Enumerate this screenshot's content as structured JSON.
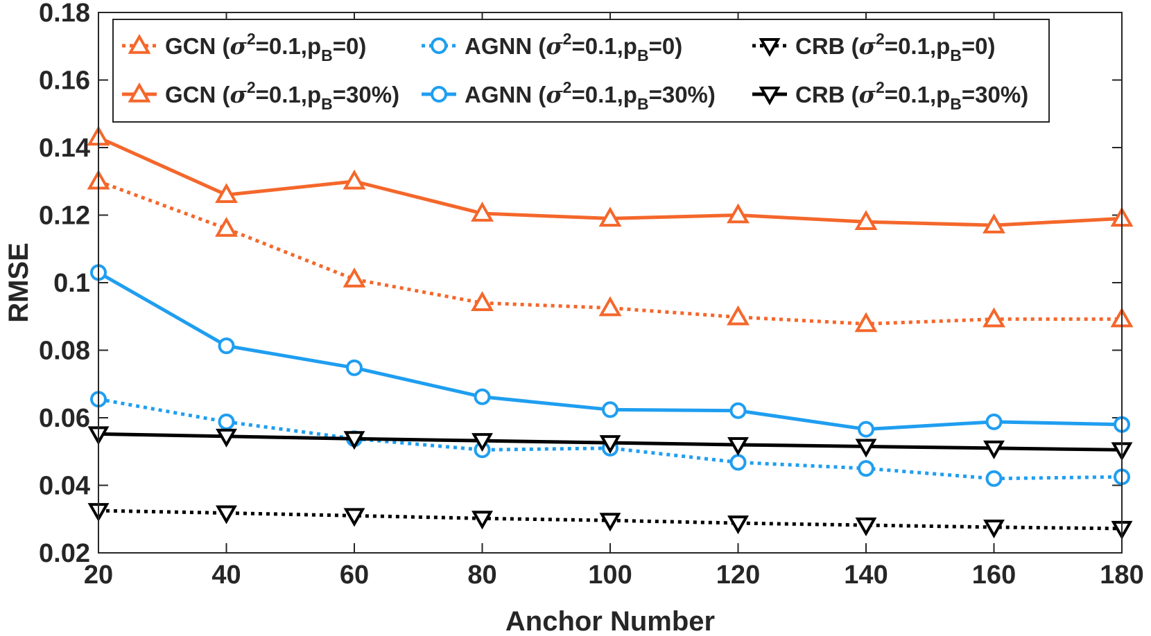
{
  "chart_data": {
    "type": "line",
    "title": "",
    "xlabel": "Anchor Number",
    "ylabel": "RMSE",
    "x": [
      20,
      40,
      60,
      80,
      100,
      120,
      140,
      160,
      180
    ],
    "xlim": [
      20,
      180
    ],
    "ylim": [
      0.02,
      0.18
    ],
    "xticks": [
      20,
      40,
      60,
      80,
      100,
      120,
      140,
      160,
      180
    ],
    "xtick_labels": [
      "20",
      "40",
      "60",
      "80",
      "100",
      "120",
      "140",
      "160",
      "180"
    ],
    "yticks": [
      0.02,
      0.04,
      0.06,
      0.08,
      0.1,
      0.12,
      0.14,
      0.16,
      0.18
    ],
    "ytick_labels": [
      "0.02",
      "0.04",
      "0.06",
      "0.08",
      "0.1",
      "0.12",
      "0.14",
      "0.16",
      "0.18"
    ],
    "grid": false,
    "legend_position": "top",
    "series": [
      {
        "name": "GCN (σ2=0.1,pB=0)",
        "label_main": "GCN (",
        "label_pb": "=0)",
        "color": "#f4672b",
        "style": "dotted",
        "marker": "triangle-up",
        "values": [
          0.13,
          0.116,
          0.101,
          0.094,
          0.0925,
          0.0898,
          0.0878,
          0.0892,
          0.0892
        ]
      },
      {
        "name": "GCN (σ2=0.1,pB=30%)",
        "label_main": "GCN (",
        "label_pb": "=30%)",
        "color": "#f4672b",
        "style": "solid",
        "marker": "triangle-up",
        "values": [
          0.143,
          0.126,
          0.13,
          0.1205,
          0.119,
          0.12,
          0.118,
          0.117,
          0.119
        ]
      },
      {
        "name": "AGNN (σ2=0.1,pB=0)",
        "label_main": "AGNN (",
        "label_pb": "=0)",
        "color": "#1f9ef0",
        "style": "dotted",
        "marker": "circle",
        "values": [
          0.0655,
          0.0588,
          0.0538,
          0.0505,
          0.051,
          0.0468,
          0.045,
          0.042,
          0.0425
        ]
      },
      {
        "name": "AGNN (σ2=0.1,pB=30%)",
        "label_main": "AGNN (",
        "label_pb": "=30%)",
        "color": "#1f9ef0",
        "style": "solid",
        "marker": "circle",
        "values": [
          0.103,
          0.0813,
          0.0748,
          0.0662,
          0.0624,
          0.0621,
          0.0566,
          0.0588,
          0.058
        ]
      },
      {
        "name": "CRB (σ2=0.1,pB=0)",
        "label_main": "CRB (",
        "label_pb": "=0)",
        "color": "#000000",
        "style": "dotted",
        "marker": "triangle-down",
        "values": [
          0.0325,
          0.0318,
          0.031,
          0.0302,
          0.0296,
          0.0288,
          0.0282,
          0.0276,
          0.0272
        ]
      },
      {
        "name": "CRB (σ2=0.1,pB=30%)",
        "label_main": "CRB (",
        "label_pb": "=30%)",
        "color": "#000000",
        "style": "solid",
        "marker": "triangle-down",
        "values": [
          0.0552,
          0.0545,
          0.0538,
          0.0532,
          0.0526,
          0.052,
          0.0515,
          0.051,
          0.0505
        ]
      }
    ],
    "legend_label_parts": {
      "sigma": "σ",
      "sigma_exp": "2",
      "equals_value": "=0.1,p",
      "p_sub": "B"
    }
  }
}
